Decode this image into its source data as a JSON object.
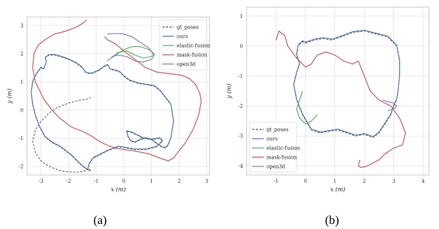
{
  "colors": {
    "gt_poses": "#555555",
    "ours": "#4c72b0",
    "elastic_fusion": "#55a868",
    "mask_fusion": "#c44e52",
    "open3d": "#8172b3",
    "grid": "#e3e3e3",
    "frame": "#bbbbbb"
  },
  "captions": [
    "(a)",
    "(b)"
  ],
  "chart_data": [
    {
      "type": "line",
      "xlabel": "x (m)",
      "ylabel": "y (m)",
      "xlim": [
        -3.5,
        3.1
      ],
      "ylim": [
        -2.3,
        3.3
      ],
      "xticks": [
        -3,
        -2,
        -1,
        0,
        1,
        2,
        3
      ],
      "yticks": [
        -2,
        -1,
        0,
        1,
        2,
        3
      ],
      "grid": true,
      "legend_position": "top-right",
      "legend": [
        "gt_poses",
        "ours",
        "elastic-fusion",
        "mask-fusion",
        "open3d"
      ],
      "series": [
        {
          "name": "gt_poses",
          "style": "dashed",
          "color": "gt_poses",
          "x": [
            -1.2,
            -1.35,
            -1.6,
            -1.9,
            -2.3,
            -2.6,
            -2.85,
            -3.05,
            -3.2,
            -3.3,
            -3.35,
            -3.3,
            -3.15,
            -3.0,
            -2.9,
            -2.8,
            -2.85,
            -2.7,
            -2.5,
            -2.3,
            -2.0,
            -1.7,
            -1.5,
            -1.4,
            -1.3,
            -1.15,
            -0.9,
            -0.7,
            -0.6,
            -0.55,
            -0.5,
            -0.3,
            -0.15,
            0.0,
            0.2,
            0.5,
            0.8,
            1.1,
            1.3,
            1.5,
            1.7,
            1.75,
            1.8,
            1.75,
            1.7,
            1.6,
            1.5,
            1.35,
            1.2,
            1.0,
            0.8,
            0.6,
            0.4,
            0.25,
            0.15,
            0.1,
            0.3,
            0.7,
            1.0,
            1.3,
            1.4,
            1.2,
            0.8,
            0.4,
            0.1,
            -0.2,
            -0.6,
            -0.9,
            -1.1,
            -1.25,
            -1.3,
            -1.4,
            -1.6,
            -1.9,
            -2.3,
            -2.7,
            -3.0,
            -3.2,
            -3.3,
            -3.2,
            -3.0,
            -2.7,
            -2.4,
            -2.0,
            -1.6,
            -1.3,
            -1.2
          ],
          "y": [
            -2.15,
            -2.1,
            -1.9,
            -1.6,
            -1.3,
            -1.15,
            -0.95,
            -0.6,
            -0.2,
            0.2,
            0.6,
            1.0,
            1.3,
            1.5,
            1.45,
            1.7,
            1.85,
            1.95,
            1.95,
            1.9,
            1.8,
            1.65,
            1.5,
            1.35,
            1.3,
            1.3,
            1.4,
            1.55,
            1.6,
            1.55,
            1.45,
            1.4,
            1.35,
            1.2,
            1.05,
            0.95,
            0.9,
            0.85,
            0.7,
            0.45,
            0.2,
            -0.1,
            -0.4,
            -0.7,
            -1.0,
            -1.25,
            -1.35,
            -1.3,
            -1.2,
            -1.05,
            -1.0,
            -1.05,
            -1.15,
            -1.1,
            -0.95,
            -0.75,
            -0.8,
            -1.0,
            -1.05,
            -1.0,
            -1.1,
            -1.3,
            -1.4,
            -1.4,
            -1.35,
            -1.3,
            -1.45,
            -1.6,
            -1.7,
            -1.9,
            -2.1,
            -2.15,
            -2.2,
            -2.2,
            -2.15,
            -2.0,
            -1.8,
            -1.5,
            -1.1,
            -0.7,
            -0.4,
            -0.1,
            0.1,
            0.25,
            0.35,
            0.4,
            0.45
          ]
        },
        {
          "name": "ours",
          "style": "solid",
          "color": "ours",
          "x": [
            -1.2,
            -1.35,
            -1.6,
            -1.9,
            -2.3,
            -2.6,
            -2.85,
            -3.05,
            -3.2,
            -3.3,
            -3.35,
            -3.3,
            -3.15,
            -3.0,
            -2.9,
            -2.8,
            -2.85,
            -2.7,
            -2.5,
            -2.3,
            -2.0,
            -1.7,
            -1.5,
            -1.4,
            -1.3,
            -1.15,
            -0.9,
            -0.7,
            -0.6,
            -0.55,
            -0.5,
            -0.3,
            -0.15,
            0.0,
            0.2,
            0.5,
            0.8,
            1.1,
            1.3,
            1.5,
            1.7,
            1.75,
            1.8,
            1.75,
            1.7,
            1.6,
            1.5,
            1.35,
            1.2,
            1.0,
            0.8,
            0.6,
            0.4,
            0.25,
            0.15,
            0.1,
            0.3,
            0.7,
            1.0,
            1.3,
            1.4,
            1.2,
            0.8,
            0.4,
            0.1,
            -0.2,
            -0.6,
            -0.9,
            -1.1,
            -1.25,
            -1.3
          ],
          "y": [
            -2.13,
            -2.08,
            -1.88,
            -1.58,
            -1.28,
            -1.13,
            -0.93,
            -0.58,
            -0.18,
            0.22,
            0.62,
            1.02,
            1.32,
            1.52,
            1.47,
            1.72,
            1.87,
            1.97,
            1.97,
            1.92,
            1.82,
            1.67,
            1.52,
            1.37,
            1.32,
            1.32,
            1.42,
            1.57,
            1.62,
            1.57,
            1.47,
            1.42,
            1.37,
            1.22,
            1.07,
            0.97,
            0.92,
            0.87,
            0.72,
            0.47,
            0.22,
            -0.08,
            -0.38,
            -0.68,
            -0.98,
            -1.23,
            -1.33,
            -1.28,
            -1.18,
            -1.03,
            -0.98,
            -1.03,
            -1.13,
            -1.08,
            -0.93,
            -0.73,
            -0.78,
            -0.98,
            -1.03,
            -0.98,
            -1.08,
            -1.28,
            -1.38,
            -1.38,
            -1.33,
            -1.28,
            -1.43,
            -1.58,
            -1.68,
            -1.88,
            -2.08
          ]
        },
        {
          "name": "elastic-fusion",
          "style": "solid",
          "color": "elastic_fusion",
          "x": [
            -0.6,
            -0.3,
            0.0,
            0.3,
            0.6,
            0.9,
            1.1,
            1.0,
            0.7,
            0.4,
            0.1,
            -0.2,
            -0.45
          ],
          "y": [
            1.75,
            1.95,
            2.15,
            2.25,
            2.25,
            2.15,
            2.0,
            1.9,
            1.85,
            1.95,
            2.1,
            2.05,
            1.85
          ]
        },
        {
          "name": "mask-fusion",
          "style": "solid",
          "color": "mask_fusion",
          "x": [
            -1.35,
            -1.45,
            -1.7,
            -2.1,
            -2.5,
            -2.85,
            -3.1,
            -3.25,
            -3.3,
            -3.2,
            -2.9,
            -2.6,
            -2.3,
            -1.9,
            -1.5,
            -1.2,
            -0.9,
            -0.6,
            -0.3,
            0.0,
            0.4,
            0.9,
            1.3,
            1.6,
            1.8,
            1.95,
            2.2,
            2.5,
            2.7,
            2.8,
            2.75,
            2.6,
            2.4,
            2.2,
            2.0,
            1.6,
            1.2,
            0.8,
            0.4,
            0.0,
            -0.3,
            -0.6,
            -0.7
          ],
          "y": [
            3.2,
            3.1,
            2.95,
            2.8,
            2.7,
            2.5,
            2.3,
            2.0,
            1.5,
            1.0,
            0.4,
            0.0,
            -0.3,
            -0.6,
            -0.75,
            -0.9,
            -1.1,
            -1.25,
            -1.35,
            -1.4,
            -1.45,
            -1.55,
            -1.7,
            -1.8,
            -1.7,
            -1.5,
            -1.2,
            -0.7,
            -0.2,
            0.3,
            0.6,
            0.9,
            1.1,
            1.2,
            1.25,
            1.3,
            1.35,
            1.5,
            1.8,
            2.1,
            2.35,
            2.5,
            2.6
          ]
        },
        {
          "name": "open3d",
          "style": "solid",
          "color": "open3d",
          "x": [
            -0.6,
            -0.3,
            0.0,
            0.3,
            0.6,
            0.9,
            1.1,
            1.0,
            0.7,
            0.4,
            0.1,
            -0.2,
            -0.45
          ],
          "y": [
            2.7,
            2.72,
            2.7,
            2.6,
            2.4,
            2.2,
            1.95,
            1.8,
            1.7,
            1.75,
            1.9,
            1.95,
            1.9
          ]
        }
      ]
    },
    {
      "type": "line",
      "xlabel": "x (m)",
      "ylabel": "y (m)",
      "xlim": [
        -2.0,
        4.2
      ],
      "ylim": [
        -4.3,
        1.3
      ],
      "xticks": [
        -1,
        0,
        1,
        2,
        3,
        4
      ],
      "yticks": [
        -4,
        -3,
        -2,
        -1,
        0,
        1
      ],
      "grid": true,
      "legend_position": "bottom-left",
      "legend": [
        "gt_poses",
        "ours",
        "elastic-fusion",
        "mask-fusion",
        "open3d"
      ],
      "series": [
        {
          "name": "gt_poses",
          "style": "dashed",
          "color": "gt_poses",
          "x": [
            0.0,
            0.3,
            0.6,
            0.9,
            1.2,
            1.6,
            2.0,
            2.4,
            2.8,
            3.1,
            3.2,
            3.2,
            3.15,
            3.1,
            3.0,
            2.9,
            2.7,
            2.5,
            2.3,
            2.0,
            1.7,
            1.4,
            1.1,
            0.8,
            0.5,
            0.2,
            -0.1,
            -0.3,
            -0.4,
            -0.3,
            -0.2,
            -0.3,
            -0.25,
            -0.1,
            0.0
          ],
          "y": [
            0.1,
            0.2,
            0.25,
            0.2,
            0.3,
            0.45,
            0.5,
            0.4,
            0.3,
            0.0,
            -0.5,
            -1.0,
            -1.5,
            -1.8,
            -2.0,
            -2.3,
            -2.6,
            -2.9,
            -3.05,
            -2.95,
            -3.0,
            -2.9,
            -2.8,
            -2.85,
            -2.9,
            -2.8,
            -2.3,
            -1.8,
            -1.3,
            -0.9,
            -0.6,
            -0.3,
            0.0,
            0.15,
            0.1
          ]
        },
        {
          "name": "ours",
          "style": "solid",
          "color": "ours",
          "x": [
            0.0,
            0.3,
            0.6,
            0.9,
            1.2,
            1.6,
            2.0,
            2.4,
            2.8,
            3.1,
            3.2,
            3.2,
            3.15,
            3.1,
            3.0,
            2.9,
            2.7,
            2.5,
            2.3,
            2.0,
            1.7,
            1.4,
            1.1,
            0.8,
            0.5,
            0.2,
            -0.1,
            -0.3,
            -0.4,
            -0.3,
            -0.2,
            -0.3,
            -0.25,
            -0.1,
            0.0
          ],
          "y": [
            0.13,
            0.23,
            0.28,
            0.23,
            0.33,
            0.48,
            0.53,
            0.43,
            0.33,
            0.03,
            -0.47,
            -0.97,
            -1.47,
            -1.77,
            -1.97,
            -2.27,
            -2.57,
            -2.87,
            -3.02,
            -2.92,
            -2.97,
            -2.87,
            -2.77,
            -2.82,
            -2.87,
            -2.77,
            -2.27,
            -1.77,
            -1.27,
            -0.87,
            -0.57,
            -0.27,
            0.03,
            0.18,
            0.13
          ]
        },
        {
          "name": "elastic-fusion",
          "style": "solid",
          "color": "elastic_fusion",
          "x": [
            -0.1,
            -0.2,
            -0.3,
            -0.2,
            0.0,
            0.2,
            0.4
          ],
          "y": [
            -1.5,
            -1.8,
            -2.1,
            -2.4,
            -2.6,
            -2.5,
            -2.3
          ]
        },
        {
          "name": "mask-fusion",
          "style": "solid",
          "color": "mask_fusion",
          "x": [
            -1.0,
            -0.9,
            -0.7,
            -0.6,
            -0.3,
            0.0,
            0.2,
            0.4,
            0.7,
            1.0,
            1.3,
            1.6,
            1.8,
            2.0,
            2.2,
            2.5,
            2.9,
            3.2,
            3.4,
            3.3,
            3.0,
            2.7,
            2.5,
            2.3,
            2.1,
            1.9,
            1.8,
            1.85
          ],
          "y": [
            0.2,
            0.5,
            0.35,
            0.0,
            -0.4,
            -0.7,
            -0.6,
            -0.3,
            -0.2,
            -0.3,
            -0.5,
            -0.6,
            -0.5,
            -1.0,
            -1.5,
            -1.8,
            -2.0,
            -2.4,
            -2.9,
            -3.3,
            -3.4,
            -3.6,
            -3.8,
            -3.9,
            -4.0,
            -4.05,
            -4.0,
            -3.8
          ]
        },
        {
          "name": "open3d",
          "style": "solid",
          "color": "open3d",
          "x": [
            2.6,
            2.8,
            3.0,
            3.1,
            3.0,
            2.8
          ],
          "y": [
            -1.8,
            -1.85,
            -1.9,
            -2.0,
            -2.1,
            -2.15
          ]
        }
      ]
    }
  ]
}
